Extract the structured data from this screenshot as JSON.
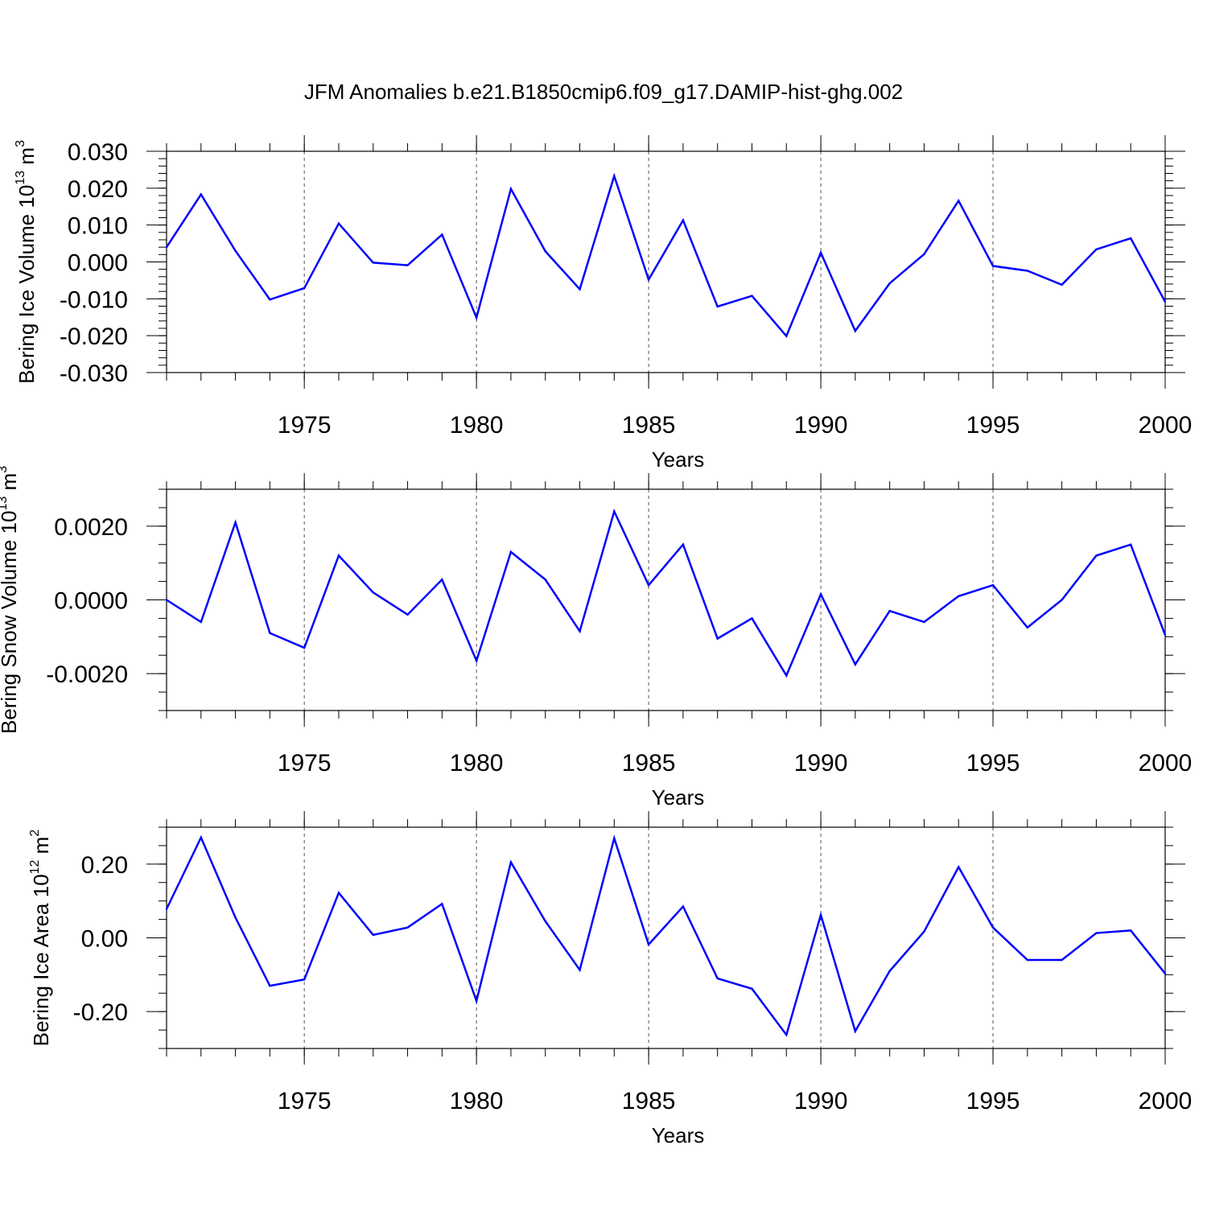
{
  "title": "JFM Anomalies b.e21.B1850cmip6.f09_g17.DAMIP-hist-ghg.002",
  "colors": {
    "line": "#0000ff",
    "axis": "#000000",
    "grid": "#555555"
  },
  "chart_data": [
    {
      "type": "line",
      "name": "ice-volume",
      "ylabel": {
        "prefix": "Bering Ice Volume 10",
        "exp": "13",
        "unit": " m",
        "unit_exp": "3"
      },
      "xlabel": "Years",
      "xlim": [
        1971,
        2000
      ],
      "ylim": [
        -0.03,
        0.03
      ],
      "yticks": [
        -0.03,
        -0.02,
        -0.01,
        0.0,
        0.01,
        0.02,
        0.03
      ],
      "yticklabels": [
        "-0.030",
        "-0.020",
        "-0.010",
        "0.000",
        "0.010",
        "0.020",
        "0.030"
      ],
      "yminor": 0.002,
      "xticks": [
        1975,
        1980,
        1985,
        1990,
        1995,
        2000
      ],
      "xticklabels": [
        "1975",
        "1980",
        "1985",
        "1990",
        "1995",
        "2000"
      ],
      "grid": "vertical-dashed",
      "x": [
        1971,
        1972,
        1973,
        1974,
        1975,
        1976,
        1977,
        1978,
        1979,
        1980,
        1981,
        1982,
        1983,
        1984,
        1985,
        1986,
        1987,
        1988,
        1989,
        1990,
        1991,
        1992,
        1993,
        1994,
        1995,
        1996,
        1997,
        1998,
        1999,
        2000
      ],
      "values": [
        0.004,
        0.0183,
        0.003,
        -0.0102,
        -0.0071,
        0.0104,
        -0.0002,
        -0.0009,
        0.0074,
        -0.0151,
        0.0198,
        0.0029,
        -0.0074,
        0.0233,
        -0.0048,
        0.0113,
        -0.0121,
        -0.0092,
        -0.0201,
        0.0025,
        -0.0187,
        -0.0058,
        0.0021,
        0.0166,
        -0.0011,
        -0.0024,
        -0.0062,
        0.0034,
        0.0064,
        -0.0108
      ]
    },
    {
      "type": "line",
      "name": "snow-volume",
      "ylabel": {
        "prefix": "Bering Snow Volume 10",
        "exp": "13",
        "unit": " m",
        "unit_exp": "3"
      },
      "xlabel": "Years",
      "xlim": [
        1971,
        2000
      ],
      "ylim": [
        -0.003,
        0.003
      ],
      "yticks": [
        -0.002,
        0.0,
        0.002
      ],
      "yticklabels": [
        "-0.0020",
        "0.0000",
        "0.0020"
      ],
      "yminor": 0.0005,
      "xticks": [
        1975,
        1980,
        1985,
        1990,
        1995,
        2000
      ],
      "xticklabels": [
        "1975",
        "1980",
        "1985",
        "1990",
        "1995",
        "2000"
      ],
      "grid": "vertical-dashed",
      "x": [
        1971,
        1972,
        1973,
        1974,
        1975,
        1976,
        1977,
        1978,
        1979,
        1980,
        1981,
        1982,
        1983,
        1984,
        1985,
        1986,
        1987,
        1988,
        1989,
        1990,
        1991,
        1992,
        1993,
        1994,
        1995,
        1996,
        1997,
        1998,
        1999,
        2000
      ],
      "values": [
        0.0,
        -0.0006,
        0.0021,
        -0.0009,
        -0.0013,
        0.0012,
        0.0002,
        -0.0004,
        0.00055,
        -0.00165,
        0.0013,
        0.00055,
        -0.00085,
        0.0024,
        0.0004,
        0.0015,
        -0.00105,
        -0.0005,
        -0.00205,
        0.00015,
        -0.00175,
        -0.0003,
        -0.0006,
        0.0001,
        0.0004,
        -0.00075,
        0.0,
        0.0012,
        0.0015,
        -0.00095
      ]
    },
    {
      "type": "line",
      "name": "ice-area",
      "ylabel": {
        "prefix": "Bering Ice Area 10",
        "exp": "12",
        "unit": " m",
        "unit_exp": "2"
      },
      "xlabel": "Years",
      "xlim": [
        1971,
        2000
      ],
      "ylim": [
        -0.3,
        0.3
      ],
      "yticks": [
        -0.2,
        0.0,
        0.2
      ],
      "yticklabels": [
        "-0.20",
        "0.00",
        "0.20"
      ],
      "yminor": 0.05,
      "xticks": [
        1975,
        1980,
        1985,
        1990,
        1995,
        2000
      ],
      "xticklabels": [
        "1975",
        "1980",
        "1985",
        "1990",
        "1995",
        "2000"
      ],
      "grid": "vertical-dashed",
      "x": [
        1971,
        1972,
        1973,
        1974,
        1975,
        1976,
        1977,
        1978,
        1979,
        1980,
        1981,
        1982,
        1983,
        1984,
        1985,
        1986,
        1987,
        1988,
        1989,
        1990,
        1991,
        1992,
        1993,
        1994,
        1995,
        1996,
        1997,
        1998,
        1999,
        2000
      ],
      "values": [
        0.078,
        0.272,
        0.055,
        -0.13,
        -0.113,
        0.122,
        0.008,
        0.028,
        0.092,
        -0.171,
        0.205,
        0.045,
        -0.087,
        0.27,
        -0.018,
        0.085,
        -0.11,
        -0.138,
        -0.263,
        0.062,
        -0.253,
        -0.09,
        0.017,
        0.192,
        0.028,
        -0.06,
        -0.06,
        0.013,
        0.02,
        -0.097
      ]
    }
  ]
}
